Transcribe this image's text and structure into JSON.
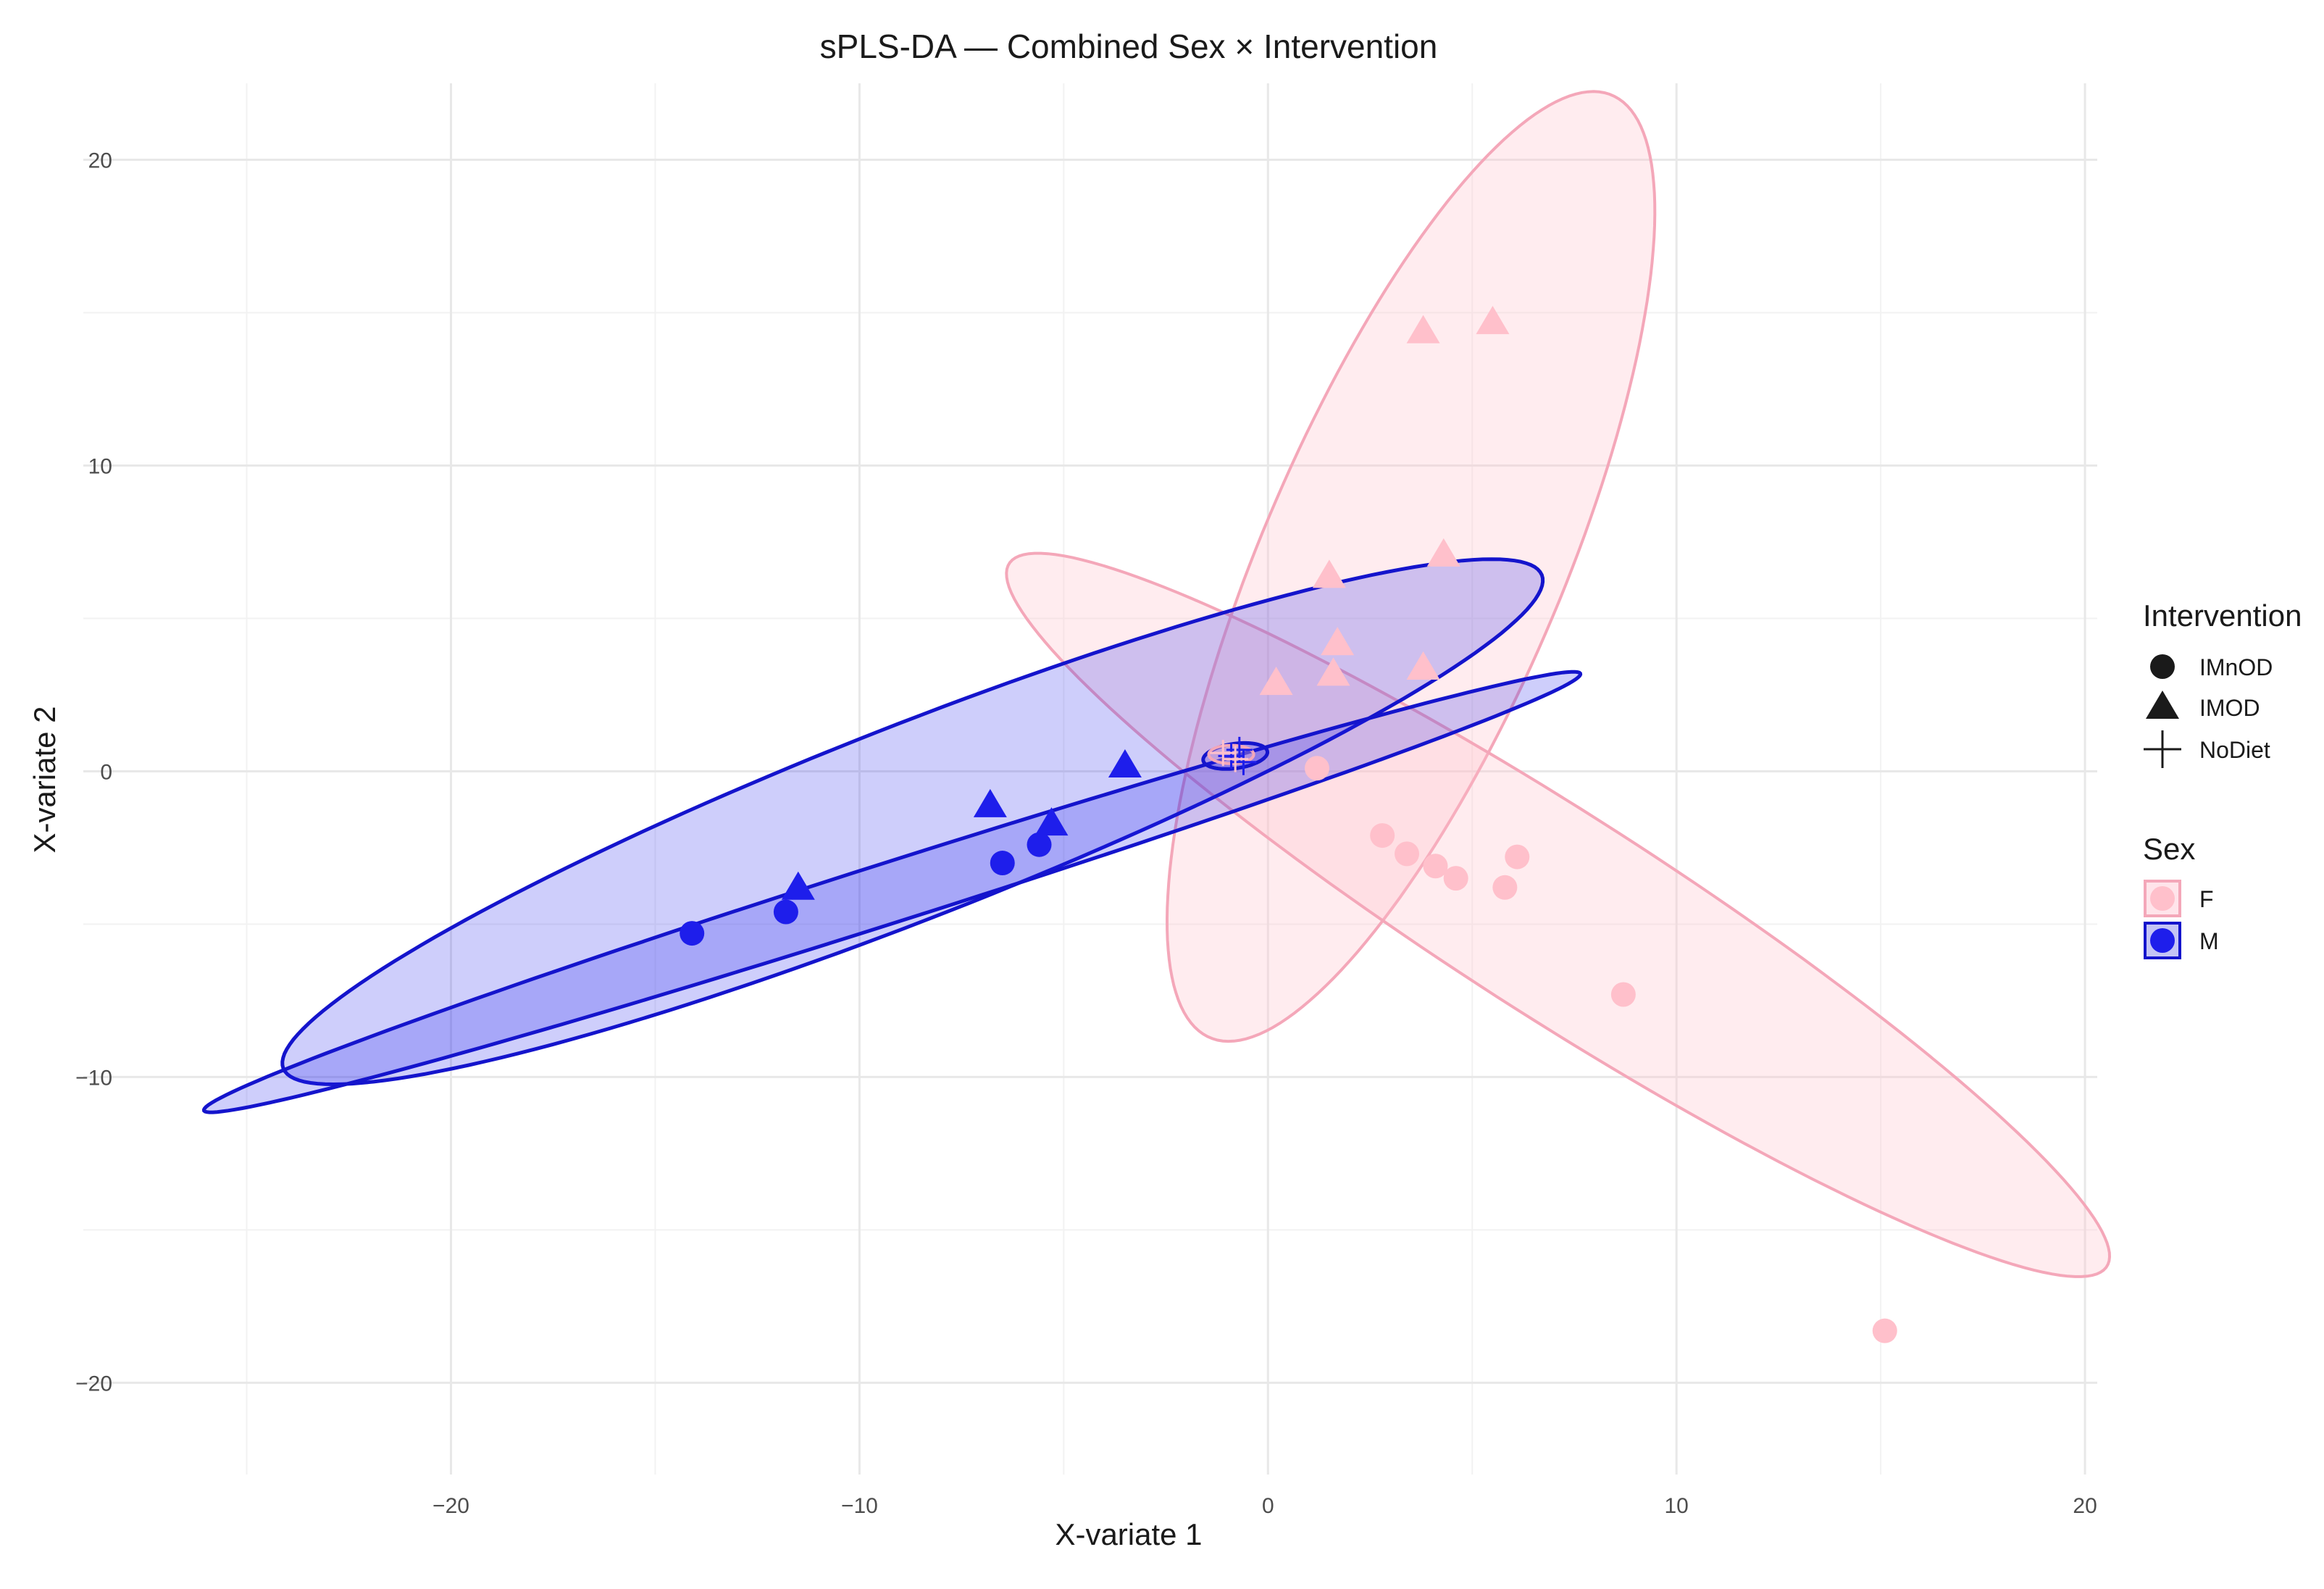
{
  "chart_data": {
    "type": "scatter",
    "title": "sPLS-DA — Combined Sex × Intervention",
    "xlabel": "X-variate 1",
    "ylabel": "X-variate 2",
    "xlim": [
      -29,
      20.3
    ],
    "ylim": [
      -23,
      22.5
    ],
    "x_major_ticks": [
      -20,
      -10,
      0,
      10,
      20
    ],
    "x_minor_ticks": [
      -25,
      -15,
      -5,
      5,
      15
    ],
    "y_major_ticks": [
      -20,
      -10,
      0,
      10,
      20
    ],
    "y_minor_ticks": [
      -15,
      -5,
      5,
      15
    ],
    "tick_labels": {
      "x": [
        "−20",
        "−10",
        "0",
        "10",
        "20"
      ],
      "y": [
        "−20",
        "−10",
        "0",
        "10",
        "20"
      ]
    },
    "grid": true,
    "colors": {
      "F": "#FFC0CB",
      "M": "#1E1EEB",
      "M_line": "#1414CC",
      "F_line": "#F4A7B9"
    },
    "legend": {
      "placement": "right",
      "intervention": {
        "title": "Intervention",
        "items": [
          {
            "label": "IMnOD",
            "shape": "circle"
          },
          {
            "label": "IMOD",
            "shape": "triangle"
          },
          {
            "label": "NoDiet",
            "shape": "cross"
          }
        ]
      },
      "sex": {
        "title": "Sex",
        "items": [
          {
            "label": "F",
            "color": "#FFC0CB"
          },
          {
            "label": "M",
            "color": "#1E1EEB"
          }
        ]
      }
    },
    "ellipses": [
      {
        "group": "F-IMOD",
        "sex": "F",
        "center": [
          3.5,
          6.7
        ],
        "semi_axes": [
          16.2,
          3.8
        ],
        "angle_deg": 73
      },
      {
        "group": "F-IMnOD",
        "sex": "F",
        "center": [
          7.1,
          -4.7
        ],
        "semi_axes": [
          17.7,
          3.0
        ],
        "angle_deg": -41
      },
      {
        "group": "M-IMOD",
        "sex": "M",
        "center": [
          -8.7,
          -1.65
        ],
        "semi_axes": [
          17.4,
          3.0
        ],
        "angle_deg": 28
      },
      {
        "group": "M-IMnOD",
        "sex": "M",
        "center": [
          -9.2,
          -3.95
        ],
        "semi_axes": [
          18.3,
          0.95
        ],
        "angle_deg": 23
      },
      {
        "group": "M-NoDiet",
        "sex": "M",
        "center": [
          -0.8,
          0.5
        ],
        "semi_axes": [
          0.8,
          0.4
        ],
        "angle_deg": 12
      },
      {
        "group": "F-NoDiet",
        "sex": "F",
        "center": [
          -0.9,
          0.55
        ],
        "semi_axes": [
          0.55,
          0.3
        ],
        "angle_deg": 0
      }
    ],
    "series": [
      {
        "name": "F",
        "intervention": "IMOD",
        "sex": "F",
        "points": [
          [
            3.8,
            14.4
          ],
          [
            5.5,
            14.7
          ],
          [
            1.5,
            6.4
          ],
          [
            4.3,
            7.1
          ],
          [
            1.7,
            4.2
          ],
          [
            1.6,
            3.2
          ],
          [
            3.8,
            3.4
          ],
          [
            0.2,
            2.9
          ]
        ]
      },
      {
        "name": "F",
        "intervention": "IMnOD",
        "sex": "F",
        "points": [
          [
            2.8,
            -2.1
          ],
          [
            3.4,
            -2.7
          ],
          [
            4.1,
            -3.1
          ],
          [
            4.6,
            -3.5
          ],
          [
            5.8,
            -3.8
          ],
          [
            6.1,
            -2.8
          ],
          [
            8.7,
            -7.3
          ],
          [
            15.1,
            -18.3
          ],
          [
            1.2,
            0.1
          ]
        ]
      },
      {
        "name": "M",
        "intervention": "IMOD",
        "sex": "M",
        "points": [
          [
            -11.5,
            -3.8
          ],
          [
            -6.8,
            -1.1
          ],
          [
            -5.3,
            -1.7
          ],
          [
            -3.5,
            0.2
          ]
        ]
      },
      {
        "name": "M",
        "intervention": "IMnOD",
        "sex": "M",
        "points": [
          [
            -14.1,
            -5.3
          ],
          [
            -11.8,
            -4.6
          ],
          [
            -6.5,
            -3.0
          ],
          [
            -5.6,
            -2.4
          ]
        ]
      },
      {
        "name": "M",
        "intervention": "NoDiet",
        "sex": "M",
        "points": [
          [
            -0.9,
            0.5
          ],
          [
            -0.7,
            0.7
          ],
          [
            -0.6,
            0.3
          ]
        ]
      },
      {
        "name": "F",
        "intervention": "NoDiet",
        "sex": "F",
        "points": [
          [
            -1.1,
            0.6
          ],
          [
            -0.8,
            0.4
          ]
        ]
      }
    ]
  }
}
